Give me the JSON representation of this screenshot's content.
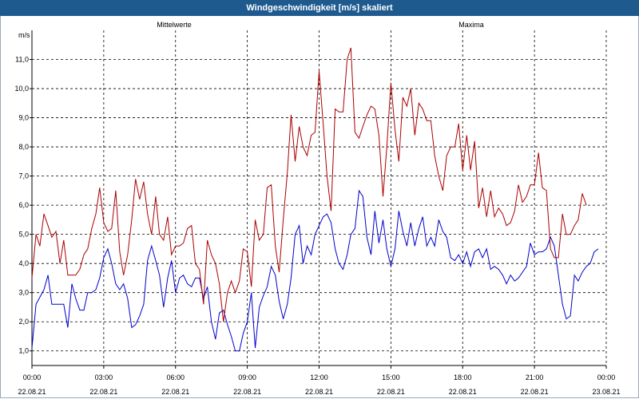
{
  "window": {
    "title": "Windgeschwindigkeit [m/s] skaliert"
  },
  "chart_data": {
    "type": "line",
    "unit_label": "m/s",
    "grid": true,
    "ylim": [
      0.5,
      12
    ],
    "yticks": [
      "1,0",
      "2,0",
      "3,0",
      "4,0",
      "5,0",
      "6,0",
      "7,0",
      "8,0",
      "9,0",
      "10,0",
      "11,0"
    ],
    "xlim": [
      0,
      24
    ],
    "xticks": [
      {
        "time": "00:00",
        "date": "22.08.21"
      },
      {
        "time": "03:00",
        "date": "22.08.21"
      },
      {
        "time": "06:00",
        "date": "22.08.21"
      },
      {
        "time": "09:00",
        "date": "22.08.21"
      },
      {
        "time": "12:00",
        "date": "22.08.21"
      },
      {
        "time": "15:00",
        "date": "22.08.21"
      },
      {
        "time": "18:00",
        "date": "22.08.21"
      },
      {
        "time": "21:00",
        "date": "22.08.21"
      },
      {
        "time": "00:00",
        "date": "23.08.21"
      }
    ],
    "legend_position": "top",
    "series": [
      {
        "name": "Mittelwerte",
        "color": "#0000cc",
        "points": [
          [
            0,
            1.1
          ],
          [
            0.17,
            2.6
          ],
          [
            0.5,
            3.1
          ],
          [
            0.67,
            3.6
          ],
          [
            0.83,
            2.6
          ],
          [
            1.0,
            2.6
          ],
          [
            1.17,
            2.6
          ],
          [
            1.33,
            2.6
          ],
          [
            1.5,
            1.8
          ],
          [
            1.67,
            3.3
          ],
          [
            1.83,
            2.8
          ],
          [
            2.0,
            2.4
          ],
          [
            2.17,
            2.4
          ],
          [
            2.33,
            3.0
          ],
          [
            2.5,
            3.0
          ],
          [
            2.67,
            3.1
          ],
          [
            2.83,
            3.5
          ],
          [
            3.0,
            4.2
          ],
          [
            3.17,
            4.5
          ],
          [
            3.33,
            4.0
          ],
          [
            3.5,
            3.3
          ],
          [
            3.67,
            3.1
          ],
          [
            3.83,
            3.3
          ],
          [
            4.0,
            2.8
          ],
          [
            4.17,
            1.8
          ],
          [
            4.33,
            1.9
          ],
          [
            4.5,
            2.2
          ],
          [
            4.67,
            2.6
          ],
          [
            4.83,
            4.1
          ],
          [
            5.0,
            4.6
          ],
          [
            5.17,
            4.1
          ],
          [
            5.33,
            3.6
          ],
          [
            5.5,
            2.5
          ],
          [
            5.67,
            3.5
          ],
          [
            5.83,
            4.1
          ],
          [
            6.0,
            3.0
          ],
          [
            6.17,
            3.5
          ],
          [
            6.33,
            3.6
          ],
          [
            6.5,
            3.3
          ],
          [
            6.67,
            3.2
          ],
          [
            6.83,
            3.5
          ],
          [
            7.0,
            3.5
          ],
          [
            7.17,
            2.8
          ],
          [
            7.33,
            3.2
          ],
          [
            7.5,
            2.0
          ],
          [
            7.67,
            1.4
          ],
          [
            7.83,
            2.3
          ],
          [
            8.0,
            2.4
          ],
          [
            8.17,
            1.9
          ],
          [
            8.33,
            1.5
          ],
          [
            8.5,
            1.0
          ],
          [
            8.67,
            1.0
          ],
          [
            8.83,
            1.6
          ],
          [
            9.0,
            2.0
          ],
          [
            9.17,
            3.0
          ],
          [
            9.33,
            1.1
          ],
          [
            9.5,
            2.5
          ],
          [
            9.67,
            2.9
          ],
          [
            9.83,
            3.2
          ],
          [
            10.0,
            3.9
          ],
          [
            10.17,
            3.6
          ],
          [
            10.33,
            2.7
          ],
          [
            10.5,
            2.1
          ],
          [
            10.67,
            2.6
          ],
          [
            10.83,
            3.5
          ],
          [
            11.0,
            5.0
          ],
          [
            11.17,
            5.3
          ],
          [
            11.33,
            4.0
          ],
          [
            11.5,
            4.6
          ],
          [
            11.67,
            4.3
          ],
          [
            11.83,
            5.0
          ],
          [
            12.0,
            5.3
          ],
          [
            12.17,
            5.6
          ],
          [
            12.33,
            5.7
          ],
          [
            12.5,
            5.4
          ],
          [
            12.67,
            4.5
          ],
          [
            12.83,
            4.0
          ],
          [
            13.0,
            3.8
          ],
          [
            13.17,
            4.3
          ],
          [
            13.33,
            5.0
          ],
          [
            13.5,
            5.2
          ],
          [
            13.67,
            6.5
          ],
          [
            13.83,
            6.3
          ],
          [
            14.0,
            4.9
          ],
          [
            14.17,
            4.3
          ],
          [
            14.33,
            5.8
          ],
          [
            14.5,
            4.7
          ],
          [
            14.67,
            5.5
          ],
          [
            14.83,
            4.5
          ],
          [
            15.0,
            3.9
          ],
          [
            15.17,
            4.5
          ],
          [
            15.33,
            5.8
          ],
          [
            15.5,
            5.1
          ],
          [
            15.67,
            4.6
          ],
          [
            15.83,
            5.4
          ],
          [
            16.0,
            4.6
          ],
          [
            16.17,
            5.2
          ],
          [
            16.33,
            5.6
          ],
          [
            16.5,
            4.6
          ],
          [
            16.67,
            4.9
          ],
          [
            16.83,
            4.6
          ],
          [
            17.0,
            5.5
          ],
          [
            17.17,
            5.1
          ],
          [
            17.33,
            4.9
          ],
          [
            17.5,
            4.2
          ],
          [
            17.67,
            4.1
          ],
          [
            17.83,
            4.3
          ],
          [
            18.0,
            4.0
          ],
          [
            18.17,
            4.4
          ],
          [
            18.33,
            3.9
          ],
          [
            18.5,
            4.4
          ],
          [
            18.67,
            4.5
          ],
          [
            18.83,
            4.2
          ],
          [
            19.0,
            4.5
          ],
          [
            19.17,
            3.8
          ],
          [
            19.33,
            3.9
          ],
          [
            19.5,
            3.8
          ],
          [
            19.67,
            3.6
          ],
          [
            19.83,
            3.3
          ],
          [
            20.0,
            3.6
          ],
          [
            20.17,
            3.4
          ],
          [
            20.33,
            3.5
          ],
          [
            20.5,
            3.7
          ],
          [
            20.67,
            3.9
          ],
          [
            20.83,
            4.7
          ],
          [
            21.0,
            4.3
          ],
          [
            21.17,
            4.4
          ],
          [
            21.33,
            4.4
          ],
          [
            21.5,
            4.5
          ],
          [
            21.67,
            4.9
          ],
          [
            21.83,
            4.6
          ],
          [
            22.0,
            3.6
          ],
          [
            22.17,
            2.6
          ],
          [
            22.33,
            2.1
          ],
          [
            22.5,
            2.2
          ],
          [
            22.67,
            3.6
          ],
          [
            22.83,
            3.4
          ],
          [
            23.0,
            3.7
          ],
          [
            23.17,
            3.9
          ],
          [
            23.33,
            4.0
          ],
          [
            23.5,
            4.4
          ],
          [
            23.67,
            4.5
          ]
        ]
      },
      {
        "name": "Maxima",
        "color": "#aa0000",
        "points": [
          [
            0,
            3.5
          ],
          [
            0.17,
            5.0
          ],
          [
            0.33,
            4.6
          ],
          [
            0.5,
            5.7
          ],
          [
            0.67,
            5.3
          ],
          [
            0.83,
            4.9
          ],
          [
            1.0,
            5.1
          ],
          [
            1.17,
            4.0
          ],
          [
            1.33,
            4.8
          ],
          [
            1.5,
            3.6
          ],
          [
            1.67,
            3.6
          ],
          [
            1.83,
            3.6
          ],
          [
            2.0,
            3.8
          ],
          [
            2.17,
            4.3
          ],
          [
            2.33,
            4.5
          ],
          [
            2.5,
            5.2
          ],
          [
            2.67,
            5.7
          ],
          [
            2.83,
            6.6
          ],
          [
            3.0,
            5.4
          ],
          [
            3.17,
            5.1
          ],
          [
            3.33,
            5.2
          ],
          [
            3.5,
            6.5
          ],
          [
            3.67,
            4.4
          ],
          [
            3.83,
            3.6
          ],
          [
            4.0,
            4.3
          ],
          [
            4.17,
            5.5
          ],
          [
            4.33,
            6.9
          ],
          [
            4.5,
            6.2
          ],
          [
            4.67,
            6.8
          ],
          [
            4.83,
            5.7
          ],
          [
            5.0,
            5.0
          ],
          [
            5.17,
            6.3
          ],
          [
            5.33,
            5.0
          ],
          [
            5.5,
            4.8
          ],
          [
            5.67,
            5.6
          ],
          [
            5.83,
            4.3
          ],
          [
            6.0,
            4.6
          ],
          [
            6.17,
            4.6
          ],
          [
            6.33,
            4.7
          ],
          [
            6.5,
            5.2
          ],
          [
            6.67,
            5.3
          ],
          [
            6.83,
            4.0
          ],
          [
            7.0,
            3.8
          ],
          [
            7.17,
            2.6
          ],
          [
            7.33,
            4.8
          ],
          [
            7.5,
            4.3
          ],
          [
            7.67,
            4.0
          ],
          [
            7.83,
            3.3
          ],
          [
            8.0,
            2.0
          ],
          [
            8.17,
            3.0
          ],
          [
            8.33,
            3.4
          ],
          [
            8.5,
            3.0
          ],
          [
            8.67,
            3.4
          ],
          [
            8.83,
            4.5
          ],
          [
            9.0,
            4.4
          ],
          [
            9.17,
            3.2
          ],
          [
            9.33,
            5.5
          ],
          [
            9.5,
            4.8
          ],
          [
            9.67,
            5.0
          ],
          [
            9.83,
            6.6
          ],
          [
            10.0,
            6.7
          ],
          [
            10.17,
            4.6
          ],
          [
            10.33,
            3.7
          ],
          [
            10.5,
            5.5
          ],
          [
            10.67,
            7.1
          ],
          [
            10.83,
            9.1
          ],
          [
            11.0,
            7.5
          ],
          [
            11.17,
            8.7
          ],
          [
            11.33,
            8.0
          ],
          [
            11.5,
            7.7
          ],
          [
            11.67,
            8.4
          ],
          [
            11.83,
            8.5
          ],
          [
            12.0,
            10.6
          ],
          [
            12.17,
            8.8
          ],
          [
            12.33,
            7.0
          ],
          [
            12.5,
            5.8
          ],
          [
            12.67,
            9.3
          ],
          [
            12.83,
            9.2
          ],
          [
            13.0,
            9.2
          ],
          [
            13.17,
            11.0
          ],
          [
            13.33,
            11.4
          ],
          [
            13.5,
            8.5
          ],
          [
            13.67,
            8.3
          ],
          [
            13.83,
            8.7
          ],
          [
            14.0,
            9.1
          ],
          [
            14.17,
            9.4
          ],
          [
            14.33,
            9.3
          ],
          [
            14.5,
            8.4
          ],
          [
            14.67,
            6.3
          ],
          [
            14.83,
            8.0
          ],
          [
            15.0,
            10.2
          ],
          [
            15.17,
            8.6
          ],
          [
            15.33,
            7.5
          ],
          [
            15.5,
            9.7
          ],
          [
            15.67,
            9.4
          ],
          [
            15.83,
            10.0
          ],
          [
            16.0,
            8.4
          ],
          [
            16.17,
            9.5
          ],
          [
            16.33,
            9.3
          ],
          [
            16.5,
            8.9
          ],
          [
            16.67,
            8.9
          ],
          [
            16.83,
            7.7
          ],
          [
            17.0,
            7.0
          ],
          [
            17.17,
            6.5
          ],
          [
            17.33,
            7.7
          ],
          [
            17.5,
            8.0
          ],
          [
            17.67,
            8.0
          ],
          [
            17.83,
            8.8
          ],
          [
            18.0,
            7.2
          ],
          [
            18.17,
            8.4
          ],
          [
            18.33,
            7.2
          ],
          [
            18.5,
            8.2
          ],
          [
            18.67,
            5.9
          ],
          [
            18.83,
            6.6
          ],
          [
            19.0,
            5.6
          ],
          [
            19.17,
            6.5
          ],
          [
            19.33,
            5.6
          ],
          [
            19.5,
            5.9
          ],
          [
            19.67,
            5.7
          ],
          [
            19.83,
            5.3
          ],
          [
            20.0,
            5.4
          ],
          [
            20.17,
            5.8
          ],
          [
            20.33,
            6.7
          ],
          [
            20.5,
            6.1
          ],
          [
            20.67,
            6.3
          ],
          [
            20.83,
            6.7
          ],
          [
            21.0,
            6.7
          ],
          [
            21.17,
            7.8
          ],
          [
            21.33,
            6.6
          ],
          [
            21.5,
            6.5
          ],
          [
            21.67,
            4.5
          ],
          [
            21.83,
            4.2
          ],
          [
            22.0,
            4.2
          ],
          [
            22.17,
            5.7
          ],
          [
            22.33,
            5.0
          ],
          [
            22.5,
            5.0
          ],
          [
            22.67,
            5.3
          ],
          [
            22.83,
            5.5
          ],
          [
            23.0,
            6.4
          ],
          [
            23.17,
            6.0
          ]
        ]
      }
    ]
  }
}
